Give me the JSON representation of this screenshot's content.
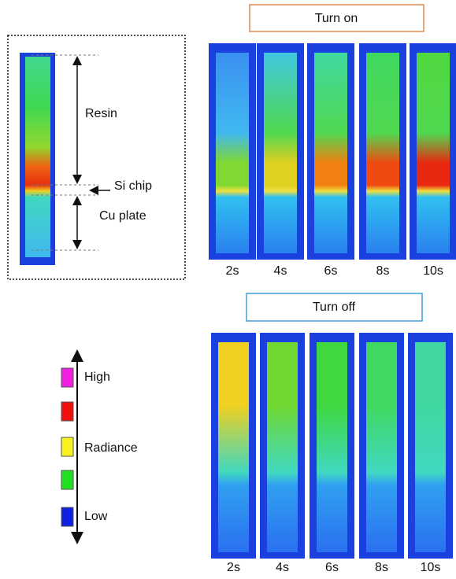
{
  "left_panel": {
    "resin": "Resin",
    "si_chip": "Si chip",
    "cu_plate": "Cu plate"
  },
  "turn_on": {
    "title": "Turn on",
    "times": [
      "2s",
      "4s",
      "6s",
      "8s",
      "10s"
    ]
  },
  "turn_off": {
    "title": "Turn off",
    "times": [
      "2s",
      "4s",
      "6s",
      "8s",
      "10s"
    ]
  },
  "legend": {
    "high": "High",
    "middle": "Radiance",
    "low": "Low"
  }
}
